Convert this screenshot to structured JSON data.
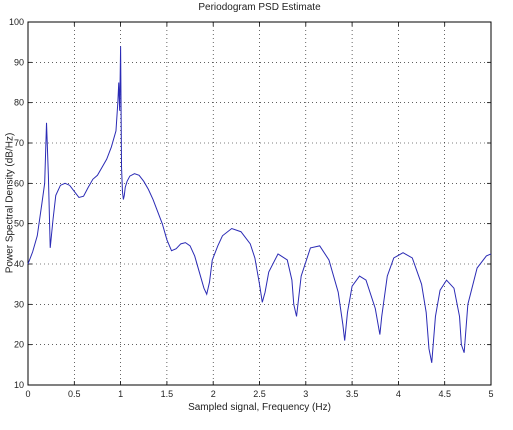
{
  "chart_data": {
    "type": "line",
    "title": "Periodogram PSD Estimate",
    "xlabel": "Sampled signal, Frequency (Hz)",
    "ylabel": "Power Spectral Density (dB/Hz)",
    "xlim": [
      0,
      5
    ],
    "ylim": [
      10,
      100
    ],
    "xticks": [
      "0",
      "0.5",
      "1",
      "1.5",
      "2",
      "2.5",
      "3",
      "3.5",
      "4",
      "4.5",
      "5"
    ],
    "yticks": [
      "10",
      "20",
      "30",
      "40",
      "50",
      "60",
      "70",
      "80",
      "90",
      "100"
    ],
    "grid": true,
    "line_color": "#2b2bb5",
    "series": [
      {
        "x": [
          0,
          0.05,
          0.1,
          0.15,
          0.18,
          0.2,
          0.22,
          0.24,
          0.27,
          0.3,
          0.35,
          0.4,
          0.45,
          0.5,
          0.55,
          0.6,
          0.65,
          0.7,
          0.75,
          0.8,
          0.85,
          0.9,
          0.95,
          0.97,
          0.98,
          0.99,
          1.0,
          1.01,
          1.02,
          1.03,
          1.04,
          1.05,
          1.07,
          1.1,
          1.15,
          1.2,
          1.25,
          1.3,
          1.35,
          1.4,
          1.45,
          1.5,
          1.55,
          1.6,
          1.65,
          1.7,
          1.75,
          1.8,
          1.85,
          1.9,
          1.93,
          1.96,
          1.99,
          2.05,
          2.1,
          2.2,
          2.3,
          2.4,
          2.45,
          2.5,
          2.53,
          2.56,
          2.6,
          2.7,
          2.8,
          2.85,
          2.87,
          2.9,
          2.95,
          3.05,
          3.15,
          3.25,
          3.35,
          3.4,
          3.42,
          3.45,
          3.5,
          3.58,
          3.65,
          3.75,
          3.8,
          3.82,
          3.88,
          3.95,
          4.05,
          4.15,
          4.25,
          4.3,
          4.33,
          4.36,
          4.4,
          4.45,
          4.52,
          4.6,
          4.66,
          4.68,
          4.71,
          4.75,
          4.85,
          4.95,
          5.0
        ],
        "y": [
          40,
          43,
          47,
          55,
          60,
          75,
          62,
          44,
          51,
          57,
          59.5,
          60,
          59.5,
          58,
          56.5,
          56.8,
          59,
          61,
          62,
          64,
          66,
          69,
          73,
          80,
          85,
          78,
          94,
          64,
          58,
          56,
          57,
          59,
          60.5,
          61.8,
          62.4,
          62,
          60.5,
          58.5,
          56,
          53,
          50,
          46,
          43.3,
          43.8,
          45,
          45.3,
          44.5,
          42,
          38,
          34,
          32.5,
          35.5,
          41,
          44.5,
          47,
          48.8,
          48,
          45,
          41.5,
          35,
          30.5,
          33,
          38,
          42.5,
          41,
          36,
          30,
          27,
          37,
          44,
          44.5,
          41,
          33,
          25,
          21,
          28,
          34.5,
          37,
          36,
          29,
          22.5,
          27,
          37,
          41.5,
          42.8,
          41.5,
          35,
          28,
          19,
          15.5,
          27,
          33.5,
          36,
          34,
          27,
          20,
          18,
          30,
          39,
          42,
          42.5
        ]
      }
    ]
  }
}
